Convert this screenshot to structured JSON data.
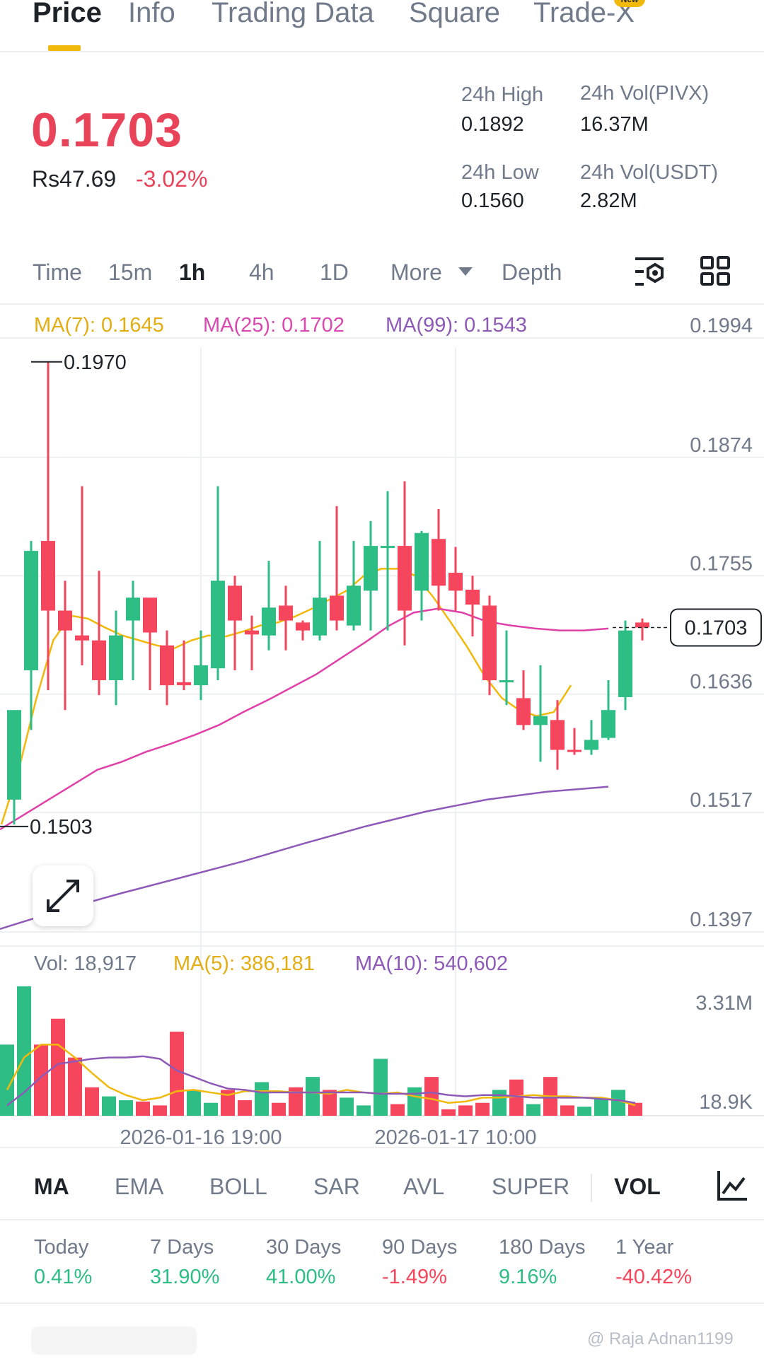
{
  "top_tabs": {
    "items": [
      "Price",
      "Info",
      "Trading Data",
      "Square",
      "Trade-X"
    ],
    "badge": "New"
  },
  "ticker": {
    "last_price": "0.1703",
    "fiat_price": "Rs47.69",
    "change_pct": "-3.02%",
    "high_label": "24h High",
    "high_value": "0.1892",
    "low_label": "24h Low",
    "low_value": "0.1560",
    "vol_base_label": "24h Vol(PIVX)",
    "vol_base_value": "16.37M",
    "vol_quote_label": "24h Vol(USDT)",
    "vol_quote_value": "2.82M"
  },
  "intervals": {
    "items": [
      "Time",
      "15m",
      "1h",
      "4h",
      "1D",
      "More",
      "Depth"
    ],
    "active": "1h"
  },
  "ma_legend": {
    "ma7": "MA(7): 0.1645",
    "ma25": "MA(25): 0.1702",
    "ma99": "MA(99): 0.1543"
  },
  "vol_legend": {
    "vol": "Vol: 18,917",
    "ma5": "MA(5): 386,181",
    "ma10": "MA(10): 540,602"
  },
  "colors": {
    "up": "#2ebd85",
    "down": "#f6465d",
    "ma7": "#f0b90b",
    "ma25": "#e040a8",
    "ma99": "#8e5ab8",
    "accent": "#f0b90b"
  },
  "chart_data": {
    "type": "candlestick",
    "price_axis_labels": [
      "0.1994",
      "0.1874",
      "0.1755",
      "0.1636",
      "0.1517",
      "0.1397"
    ],
    "ylim": [
      0.1397,
      0.1994
    ],
    "current_price_label": "0.1703",
    "max_marker": "0.1970",
    "min_marker": "0.1503",
    "time_labels": [
      "2026-01-16 19:00",
      "2026-01-17 10:00"
    ],
    "volume_axis_labels": [
      "3.31M",
      "18.9K"
    ],
    "candles": [
      {
        "o": 0.153,
        "h": 0.162,
        "l": 0.1505,
        "c": 0.162
      },
      {
        "o": 0.166,
        "h": 0.179,
        "l": 0.16,
        "c": 0.178
      },
      {
        "o": 0.179,
        "h": 0.197,
        "l": 0.164,
        "c": 0.172
      },
      {
        "o": 0.172,
        "h": 0.175,
        "l": 0.162,
        "c": 0.17
      },
      {
        "o": 0.1695,
        "h": 0.1845,
        "l": 0.1665,
        "c": 0.169
      },
      {
        "o": 0.169,
        "h": 0.176,
        "l": 0.1635,
        "c": 0.165
      },
      {
        "o": 0.165,
        "h": 0.172,
        "l": 0.1625,
        "c": 0.1695
      },
      {
        "o": 0.171,
        "h": 0.175,
        "l": 0.165,
        "c": 0.1733
      },
      {
        "o": 0.1733,
        "h": 0.173,
        "l": 0.164,
        "c": 0.1698
      },
      {
        "o": 0.1685,
        "h": 0.17,
        "l": 0.1625,
        "c": 0.1645
      },
      {
        "o": 0.1648,
        "h": 0.169,
        "l": 0.164,
        "c": 0.1645
      },
      {
        "o": 0.1645,
        "h": 0.17,
        "l": 0.163,
        "c": 0.1665
      },
      {
        "o": 0.1662,
        "h": 0.1845,
        "l": 0.165,
        "c": 0.175
      },
      {
        "o": 0.1745,
        "h": 0.1755,
        "l": 0.166,
        "c": 0.171
      },
      {
        "o": 0.17,
        "h": 0.1715,
        "l": 0.166,
        "c": 0.1696
      },
      {
        "o": 0.1695,
        "h": 0.177,
        "l": 0.168,
        "c": 0.1723
      },
      {
        "o": 0.1725,
        "h": 0.1745,
        "l": 0.168,
        "c": 0.171
      },
      {
        "o": 0.1708,
        "h": 0.171,
        "l": 0.169,
        "c": 0.17
      },
      {
        "o": 0.1695,
        "h": 0.179,
        "l": 0.169,
        "c": 0.1733
      },
      {
        "o": 0.1735,
        "h": 0.1825,
        "l": 0.17,
        "c": 0.171
      },
      {
        "o": 0.1705,
        "h": 0.179,
        "l": 0.17,
        "c": 0.1745
      },
      {
        "o": 0.174,
        "h": 0.181,
        "l": 0.17,
        "c": 0.1785
      },
      {
        "o": 0.1785,
        "h": 0.184,
        "l": 0.17,
        "c": 0.1785
      },
      {
        "o": 0.1785,
        "h": 0.185,
        "l": 0.1685,
        "c": 0.172
      },
      {
        "o": 0.174,
        "h": 0.18,
        "l": 0.171,
        "c": 0.1798
      },
      {
        "o": 0.1792,
        "h": 0.1822,
        "l": 0.172,
        "c": 0.1745
      },
      {
        "o": 0.1758,
        "h": 0.1784,
        "l": 0.172,
        "c": 0.174
      },
      {
        "o": 0.1741,
        "h": 0.1755,
        "l": 0.1694,
        "c": 0.1726
      },
      {
        "o": 0.1725,
        "h": 0.1735,
        "l": 0.1635,
        "c": 0.165
      },
      {
        "o": 0.165,
        "h": 0.17,
        "l": 0.1625,
        "c": 0.165
      },
      {
        "o": 0.1632,
        "h": 0.166,
        "l": 0.16,
        "c": 0.1605
      },
      {
        "o": 0.1605,
        "h": 0.1665,
        "l": 0.1568,
        "c": 0.1614
      },
      {
        "o": 0.161,
        "h": 0.163,
        "l": 0.156,
        "c": 0.158
      },
      {
        "o": 0.158,
        "h": 0.1602,
        "l": 0.1575,
        "c": 0.1578
      },
      {
        "o": 0.158,
        "h": 0.161,
        "l": 0.1575,
        "c": 0.159
      },
      {
        "o": 0.1592,
        "h": 0.165,
        "l": 0.159,
        "c": 0.162
      },
      {
        "o": 0.1633,
        "h": 0.171,
        "l": 0.162,
        "c": 0.17
      },
      {
        "o": 0.1708,
        "h": 0.1712,
        "l": 0.169,
        "c": 0.1703
      }
    ],
    "volumes": [
      0.55,
      1.0,
      0.55,
      0.75,
      0.45,
      0.22,
      0.15,
      0.12,
      0.11,
      0.08,
      0.65,
      0.2,
      0.1,
      0.2,
      0.12,
      0.26,
      0.1,
      0.22,
      0.3,
      0.2,
      0.14,
      0.08,
      0.44,
      0.09,
      0.22,
      0.3,
      0.05,
      0.08,
      0.1,
      0.2,
      0.28,
      0.09,
      0.3,
      0.08,
      0.07,
      0.13,
      0.2,
      0.1
    ],
    "ma7": [
      0.1505,
      0.156,
      0.163,
      0.169,
      0.1715,
      0.1712,
      0.1703,
      0.1695,
      0.169,
      0.1685,
      0.1682,
      0.169,
      0.1695,
      0.1694,
      0.1699,
      0.1705,
      0.1708,
      0.1714,
      0.1722,
      0.1731,
      0.174,
      0.1755,
      0.1762,
      0.1762,
      0.1755,
      0.1734,
      0.1709,
      0.1683,
      0.1654,
      0.1632,
      0.162,
      0.1614,
      0.1618,
      0.1645
    ],
    "ma25": [
      0.15,
      0.1515,
      0.153,
      0.1545,
      0.156,
      0.1568,
      0.1578,
      0.1586,
      0.1595,
      0.1605,
      0.1618,
      0.163,
      0.1643,
      0.1656,
      0.1672,
      0.1688,
      0.1705,
      0.1718,
      0.1722,
      0.1718,
      0.1709,
      0.1705,
      0.1702,
      0.17,
      0.17,
      0.1702
    ],
    "ma99": [
      0.14,
      0.1419,
      0.1436,
      0.1452,
      0.1468,
      0.1486,
      0.1503,
      0.1518,
      0.153,
      0.1538,
      0.1543
    ]
  },
  "chart_tools": {
    "settings_icon": "chart-settings-icon",
    "layout_icon": "grid-layout-icon",
    "expand_icon": "expand-arrows-icon"
  },
  "indicators": {
    "items": [
      "MA",
      "EMA",
      "BOLL",
      "SAR",
      "AVL",
      "SUPER",
      "VOL"
    ],
    "active_main": "MA",
    "active_sub": "VOL"
  },
  "performance": [
    {
      "label": "Today",
      "value": "0.41%",
      "dir": "up"
    },
    {
      "label": "7 Days",
      "value": "31.90%",
      "dir": "up"
    },
    {
      "label": "30 Days",
      "value": "41.00%",
      "dir": "up"
    },
    {
      "label": "90 Days",
      "value": "-1.49%",
      "dir": "down"
    },
    {
      "label": "180 Days",
      "value": "9.16%",
      "dir": "up"
    },
    {
      "label": "1 Year",
      "value": "-40.42%",
      "dir": "down"
    }
  ],
  "watermark": "@ Raja Adnan1199"
}
